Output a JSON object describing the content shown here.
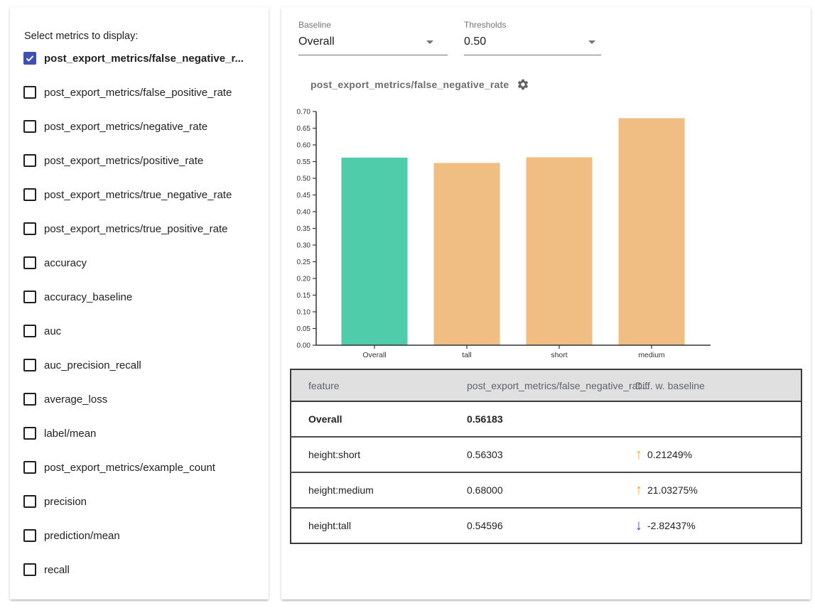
{
  "sidebar": {
    "title": "Select metrics to display:",
    "items": [
      {
        "label": "post_export_metrics/false_negative_r...",
        "checked": true
      },
      {
        "label": "post_export_metrics/false_positive_rate",
        "checked": false
      },
      {
        "label": "post_export_metrics/negative_rate",
        "checked": false
      },
      {
        "label": "post_export_metrics/positive_rate",
        "checked": false
      },
      {
        "label": "post_export_metrics/true_negative_rate",
        "checked": false
      },
      {
        "label": "post_export_metrics/true_positive_rate",
        "checked": false
      },
      {
        "label": "accuracy",
        "checked": false
      },
      {
        "label": "accuracy_baseline",
        "checked": false
      },
      {
        "label": "auc",
        "checked": false
      },
      {
        "label": "auc_precision_recall",
        "checked": false
      },
      {
        "label": "average_loss",
        "checked": false
      },
      {
        "label": "label/mean",
        "checked": false
      },
      {
        "label": "post_export_metrics/example_count",
        "checked": false
      },
      {
        "label": "precision",
        "checked": false
      },
      {
        "label": "prediction/mean",
        "checked": false
      },
      {
        "label": "recall",
        "checked": false
      }
    ]
  },
  "controls": {
    "baseline": {
      "label": "Baseline",
      "value": "Overall"
    },
    "thresholds": {
      "label": "Thresholds",
      "value": "0.50"
    }
  },
  "chart_title": "post_export_metrics/false_negative_rate",
  "chart_data": {
    "type": "bar",
    "title": "post_export_metrics/false_negative_rate",
    "categories": [
      "Overall",
      "tall",
      "short",
      "medium"
    ],
    "values": [
      0.56183,
      0.54596,
      0.56303,
      0.68
    ],
    "bar_colors": [
      "#4fcdab",
      "#f0bd83",
      "#f0bd83",
      "#f0bd83"
    ],
    "xlabel": "",
    "ylabel": "",
    "ylim": [
      0,
      0.7
    ],
    "ytick_step": 0.05,
    "grid": false,
    "legend": "none"
  },
  "table": {
    "headers": [
      "feature",
      "post_export_metrics/false_negative_rat...",
      "Diff. w. baseline"
    ],
    "rows": [
      {
        "feature": "Overall",
        "value": "0.56183",
        "diff": null,
        "direction": null,
        "highlight": true
      },
      {
        "feature": "height:short",
        "value": "0.56303",
        "diff": "0.21249%",
        "direction": "up",
        "highlight": false
      },
      {
        "feature": "height:medium",
        "value": "0.68000",
        "diff": "21.03275%",
        "direction": "up",
        "highlight": false
      },
      {
        "feature": "height:tall",
        "value": "0.54596",
        "diff": "-2.82437%",
        "direction": "down",
        "highlight": false
      }
    ]
  },
  "colors": {
    "checkbox_checked": "#3f51b5",
    "baseline_bar": "#4fcdab",
    "slice_bar": "#f0bd83",
    "baseline_row_text": "#29a184",
    "up_arrow": "#f6a623",
    "down_arrow": "#2b45e2",
    "table_header_bg": "#e0e0e0"
  }
}
